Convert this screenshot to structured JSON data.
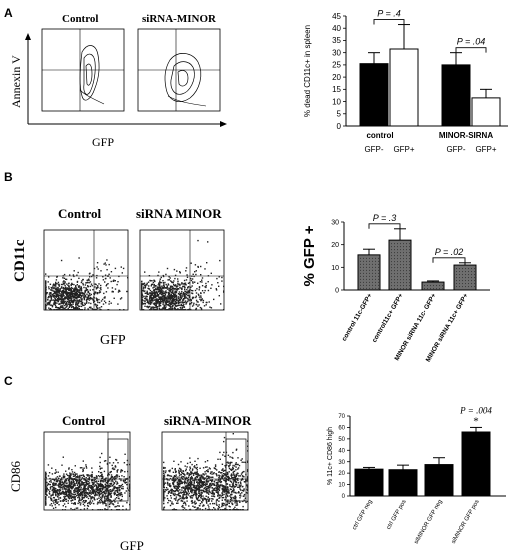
{
  "panels": [
    {
      "letter": "A",
      "flow": {
        "ylabel": "Annexin V",
        "xlabel": "GFP",
        "plot_titles": [
          "Control",
          "siRNA-MINOR"
        ]
      }
    },
    {
      "letter": "B",
      "flow": {
        "ylabel": "CD11c",
        "xlabel": "GFP",
        "plot_titles": [
          "Control",
          "siRNA MINOR"
        ]
      }
    },
    {
      "letter": "C",
      "flow": {
        "ylabel": "CD86",
        "xlabel": "GFP",
        "plot_titles": [
          "Control",
          "siRNA-MINOR"
        ]
      }
    }
  ],
  "chart_data": [
    {
      "type": "bar",
      "panel": "A",
      "ylabel": "% dead CD11c+ in spleen",
      "ylim": [
        0,
        45
      ],
      "yticks": [
        0,
        5,
        10,
        15,
        20,
        25,
        30,
        35,
        40,
        45
      ],
      "groups": [
        "control",
        "MINOR-SIRNA"
      ],
      "categories": [
        "GFP-",
        "GFP+",
        "GFP-",
        "GFP+"
      ],
      "values": [
        25.5,
        31.5,
        25,
        11.5
      ],
      "errors": [
        4.5,
        10,
        5,
        3.5
      ],
      "fills": [
        "#000000",
        "#ffffff",
        "#000000",
        "#ffffff"
      ],
      "annotations": [
        {
          "text": "P = .4",
          "from": 0,
          "to": 1
        },
        {
          "text": "P = .04",
          "from": 2,
          "to": 3
        }
      ]
    },
    {
      "type": "bar",
      "panel": "B",
      "ylabel": "% GFP +",
      "ylim": [
        0,
        30
      ],
      "yticks": [
        0,
        10,
        20,
        30
      ],
      "categories": [
        "control 11c-GFP+",
        "control11c+ GFP+",
        "MINOR siRNA 11c- GFP+",
        "MINOR siRNA 11c+ GFP+"
      ],
      "values": [
        15.5,
        22,
        3.5,
        11
      ],
      "errors": [
        2.5,
        5,
        0.5,
        1
      ],
      "fills": [
        "#6f6f6f",
        "#6f6f6f",
        "#6f6f6f",
        "#6f6f6f"
      ],
      "annotations": [
        {
          "text": "P = .3",
          "from": 0,
          "to": 1
        },
        {
          "text": "P = .02",
          "from": 2,
          "to": 3
        }
      ]
    },
    {
      "type": "bar",
      "panel": "C",
      "ylabel": "% 11c+ CD86 high",
      "ylim": [
        0,
        70
      ],
      "yticks": [
        0,
        10,
        20,
        30,
        40,
        50,
        60,
        70
      ],
      "categories": [
        "ctrl GFP neg",
        "ctrl GFP pos",
        "siMINOR GFP neg",
        "siMINOR GFP pos"
      ],
      "values": [
        23.5,
        23,
        27.5,
        56
      ],
      "errors": [
        1.5,
        4,
        6,
        4
      ],
      "fills": [
        "#000000",
        "#000000",
        "#000000",
        "#000000"
      ],
      "annotations": [
        {
          "text": "P = .004",
          "bar": 3
        },
        {
          "text": "*",
          "bar": 3
        }
      ]
    }
  ]
}
